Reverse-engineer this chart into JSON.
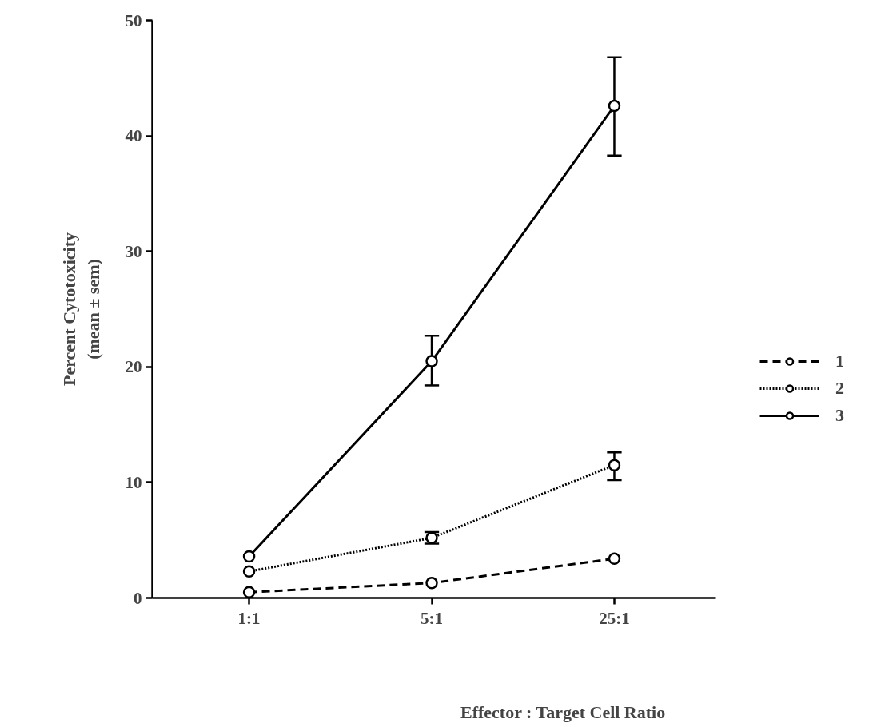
{
  "chart_data": {
    "type": "line",
    "xlabel": "Effector : Target Cell Ratio",
    "ylabel": "Percent Cytotoxicity\n(mean ± sem)",
    "categories": [
      "1:1",
      "5:1",
      "25:1"
    ],
    "ylim": [
      0,
      50
    ],
    "yticks": [
      0,
      10,
      20,
      30,
      40,
      50
    ],
    "grid": false,
    "legend": "right",
    "marker": "circle",
    "series": [
      {
        "name": "1",
        "color": "#000000",
        "line_style": "dashed",
        "values": [
          0.5,
          1.3,
          3.4
        ]
      },
      {
        "name": "2",
        "color": "#000000",
        "line_style": "dotted",
        "values": [
          2.3,
          5.2,
          11.5
        ],
        "errors": [
          null,
          [
            4.7,
            5.7
          ],
          [
            10.2,
            12.6
          ]
        ]
      },
      {
        "name": "3",
        "color": "#000000",
        "line_style": "solid",
        "values": [
          3.6,
          20.5,
          42.6
        ],
        "errors": [
          null,
          [
            18.4,
            22.7
          ],
          [
            38.3,
            46.8
          ]
        ]
      }
    ]
  }
}
